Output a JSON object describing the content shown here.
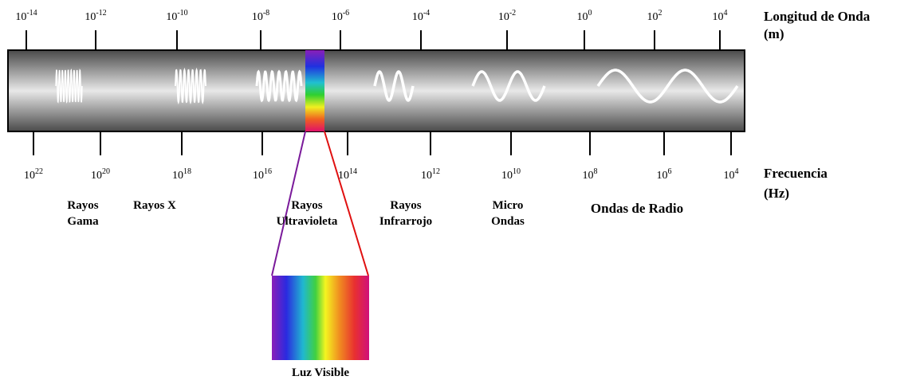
{
  "wavelength_axis": {
    "title": [
      "Longitud de Onda",
      "(m)"
    ],
    "ticks": [
      {
        "base": "10",
        "exp": "-14"
      },
      {
        "base": "10",
        "exp": "-12"
      },
      {
        "base": "10",
        "exp": "-10"
      },
      {
        "base": "10",
        "exp": "-8"
      },
      {
        "base": "10",
        "exp": "-6"
      },
      {
        "base": "10",
        "exp": "-4"
      },
      {
        "base": "10",
        "exp": "-2"
      },
      {
        "base": "10",
        "exp": "0"
      },
      {
        "base": "10",
        "exp": "2"
      },
      {
        "base": "10",
        "exp": "4"
      }
    ]
  },
  "frequency_axis": {
    "title": [
      "Frecuencia",
      "(Hz)"
    ],
    "ticks": [
      {
        "base": "10",
        "exp": "22"
      },
      {
        "base": "10",
        "exp": "20"
      },
      {
        "base": "10",
        "exp": "18"
      },
      {
        "base": "10",
        "exp": "16"
      },
      {
        "base": "10",
        "exp": "14"
      },
      {
        "base": "10",
        "exp": "12"
      },
      {
        "base": "10",
        "exp": "10"
      },
      {
        "base": "10",
        "exp": "8"
      },
      {
        "base": "10",
        "exp": "6"
      },
      {
        "base": "10",
        "exp": "4"
      }
    ]
  },
  "regions": [
    [
      "Rayos",
      "Gama"
    ],
    [
      "Rayos X"
    ],
    [
      "Rayos",
      "Ultravioleta"
    ],
    [
      "Rayos",
      "Infrarrojo"
    ],
    [
      "Micro",
      "Ondas"
    ],
    [
      "Ondas de Radio"
    ]
  ],
  "visible_light": {
    "label": "Luz Visible"
  }
}
